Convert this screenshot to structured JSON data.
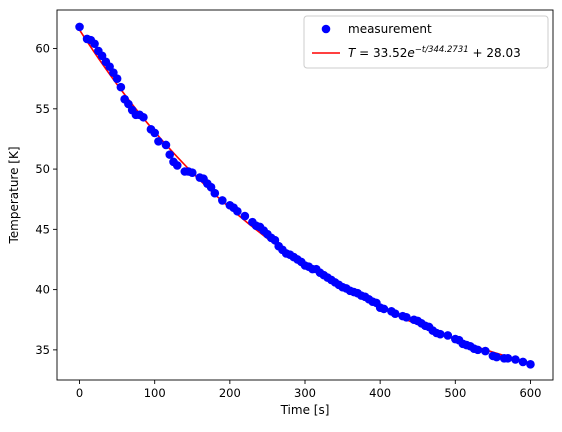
{
  "chart_data": {
    "type": "scatter",
    "xlabel": "Time [s]",
    "ylabel": "Temperature [K]",
    "xlim": [
      -30,
      630
    ],
    "ylim": [
      32.5,
      63.2
    ],
    "xticks": [
      0,
      100,
      200,
      300,
      400,
      500,
      600
    ],
    "yticks": [
      35,
      40,
      45,
      50,
      55,
      60
    ],
    "grid": false,
    "legend_position": "top-right",
    "series": [
      {
        "name": "measurement",
        "kind": "scatter",
        "color": "#0000ff",
        "points": [
          [
            0,
            61.8
          ],
          [
            10,
            60.8
          ],
          [
            15,
            60.7
          ],
          [
            20,
            60.4
          ],
          [
            25,
            59.8
          ],
          [
            30,
            59.4
          ],
          [
            35,
            58.9
          ],
          [
            40,
            58.5
          ],
          [
            45,
            58.0
          ],
          [
            50,
            57.5
          ],
          [
            55,
            56.8
          ],
          [
            60,
            55.8
          ],
          [
            65,
            55.4
          ],
          [
            70,
            54.9
          ],
          [
            75,
            54.5
          ],
          [
            80,
            54.5
          ],
          [
            85,
            54.3
          ],
          [
            95,
            53.3
          ],
          [
            100,
            53.0
          ],
          [
            105,
            52.3
          ],
          [
            115,
            52.0
          ],
          [
            120,
            51.2
          ],
          [
            125,
            50.6
          ],
          [
            130,
            50.3
          ],
          [
            140,
            49.8
          ],
          [
            145,
            49.8
          ],
          [
            150,
            49.7
          ],
          [
            160,
            49.3
          ],
          [
            165,
            49.2
          ],
          [
            170,
            48.8
          ],
          [
            175,
            48.5
          ],
          [
            180,
            48.0
          ],
          [
            190,
            47.4
          ],
          [
            200,
            47.0
          ],
          [
            205,
            46.8
          ],
          [
            210,
            46.5
          ],
          [
            220,
            46.1
          ],
          [
            230,
            45.6
          ],
          [
            235,
            45.3
          ],
          [
            240,
            45.2
          ],
          [
            245,
            44.9
          ],
          [
            250,
            44.6
          ],
          [
            255,
            44.3
          ],
          [
            260,
            44.1
          ],
          [
            265,
            43.6
          ],
          [
            270,
            43.3
          ],
          [
            275,
            43.0
          ],
          [
            280,
            42.9
          ],
          [
            285,
            42.7
          ],
          [
            290,
            42.5
          ],
          [
            295,
            42.3
          ],
          [
            300,
            42.0
          ],
          [
            305,
            41.9
          ],
          [
            310,
            41.7
          ],
          [
            315,
            41.7
          ],
          [
            320,
            41.4
          ],
          [
            325,
            41.2
          ],
          [
            330,
            41.0
          ],
          [
            335,
            40.8
          ],
          [
            340,
            40.6
          ],
          [
            345,
            40.4
          ],
          [
            350,
            40.2
          ],
          [
            355,
            40.1
          ],
          [
            360,
            39.9
          ],
          [
            365,
            39.8
          ],
          [
            370,
            39.7
          ],
          [
            375,
            39.5
          ],
          [
            380,
            39.4
          ],
          [
            385,
            39.2
          ],
          [
            390,
            39.0
          ],
          [
            395,
            38.9
          ],
          [
            400,
            38.5
          ],
          [
            405,
            38.4
          ],
          [
            415,
            38.2
          ],
          [
            420,
            38.0
          ],
          [
            430,
            37.8
          ],
          [
            435,
            37.7
          ],
          [
            445,
            37.5
          ],
          [
            450,
            37.4
          ],
          [
            455,
            37.2
          ],
          [
            460,
            37.0
          ],
          [
            465,
            36.9
          ],
          [
            470,
            36.6
          ],
          [
            475,
            36.4
          ],
          [
            480,
            36.3
          ],
          [
            490,
            36.2
          ],
          [
            500,
            35.9
          ],
          [
            505,
            35.8
          ],
          [
            510,
            35.5
          ],
          [
            515,
            35.4
          ],
          [
            520,
            35.3
          ],
          [
            525,
            35.1
          ],
          [
            530,
            35.0
          ],
          [
            540,
            34.9
          ],
          [
            550,
            34.5
          ],
          [
            555,
            34.4
          ],
          [
            565,
            34.3
          ],
          [
            570,
            34.3
          ],
          [
            580,
            34.2
          ],
          [
            590,
            34.0
          ],
          [
            600,
            33.8
          ]
        ]
      },
      {
        "name": "fit",
        "kind": "line",
        "color": "#ff0000",
        "params": {
          "A": 33.52,
          "tau": 344.2731,
          "C": 28.03
        },
        "x_range": [
          0,
          600
        ]
      }
    ],
    "legend": [
      {
        "type": "marker",
        "label": "measurement",
        "color": "#0000ff"
      },
      {
        "type": "line",
        "label_prefix": "T",
        "label_eq": " = 33.52",
        "label_e": "e",
        "label_sup": "−t/344.2731",
        "label_tail": " + 28.03",
        "color": "#ff0000"
      }
    ]
  }
}
